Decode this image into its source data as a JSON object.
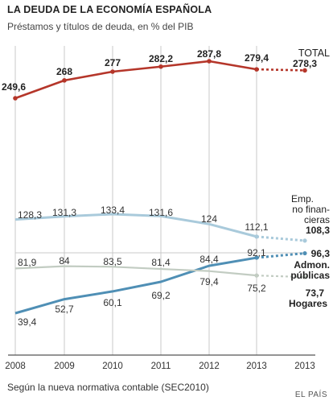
{
  "header": {
    "title": "LA DEUDA DE LA ECONOMÍA ESPAÑOLA",
    "subtitle": "Préstamos y títulos de deuda, en % del PIB"
  },
  "footer": {
    "note": "Según la nueva normativa contable (SEC2010)",
    "source": "EL PAÍS"
  },
  "chart_data": {
    "type": "line",
    "categories": [
      "2008",
      "2009",
      "2010",
      "2011",
      "2012",
      "2013",
      "2013"
    ],
    "title": "LA DEUDA DE LA ECONOMÍA ESPAÑOLA",
    "subtitle": "Préstamos y títulos de deuda, en % del PIB",
    "grid": true,
    "series": [
      {
        "name": "TOTAL",
        "color": "#b5362a",
        "values": [
          249.6,
          268,
          277,
          282.2,
          287.8,
          279.4,
          278.3
        ],
        "labels": [
          "249,6",
          "268",
          "277",
          "282,2",
          "287,8",
          "279,4",
          "278,3"
        ],
        "label_lines": [
          "TOTAL"
        ]
      },
      {
        "name": "Emp. no financieras",
        "color": "#a9cadb",
        "values": [
          128.3,
          131.3,
          133.4,
          131.6,
          124,
          112.1,
          108.3
        ],
        "labels": [
          "128,3",
          "131,3",
          "133,4",
          "131,6",
          "124",
          "112,1",
          "108,3"
        ],
        "label_lines": [
          "Emp.",
          "no finan-",
          "cieras"
        ]
      },
      {
        "name": "Admon. públicas",
        "color": "#4f8fb5",
        "values": [
          39.4,
          52.7,
          60.1,
          69.2,
          84.4,
          92.1,
          96.3
        ],
        "labels": [
          "39,4",
          "52,7",
          "60,1",
          "69,2",
          "84,4",
          "92,1",
          "96,3"
        ],
        "label_lines": [
          "Admon.",
          "públicas"
        ]
      },
      {
        "name": "Hogares",
        "color": "#c2ccc2",
        "values": [
          81.9,
          84,
          83.5,
          81.4,
          79.4,
          75.2,
          73.7
        ],
        "labels": [
          "81,9",
          "84",
          "83,5",
          "81,4",
          "79,4",
          "75,2",
          "73,7"
        ],
        "label_lines": [
          "Hogares"
        ]
      }
    ]
  }
}
